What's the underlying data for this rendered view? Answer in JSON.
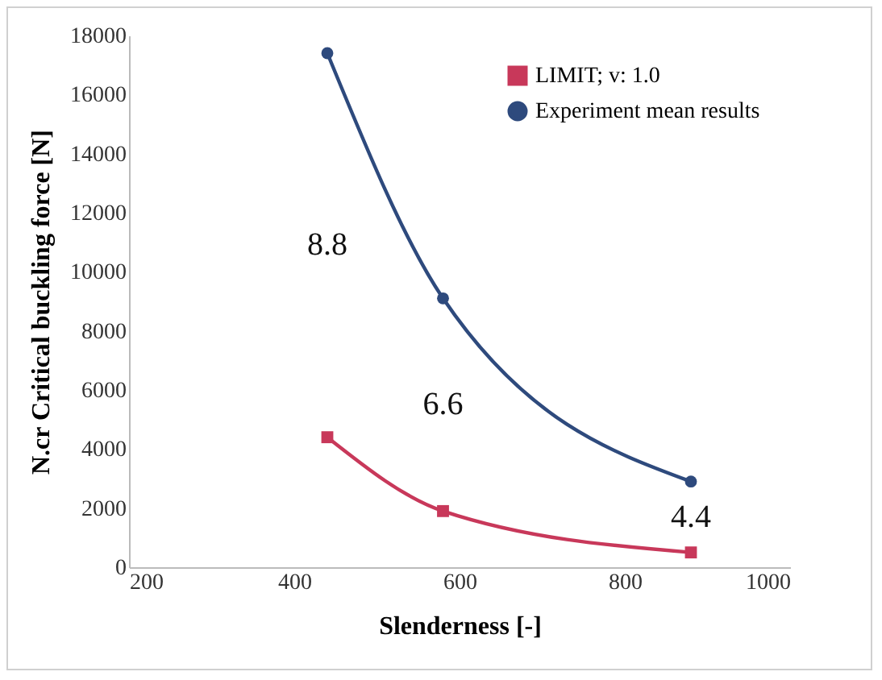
{
  "chart_data": {
    "type": "line",
    "xlabel": "Slenderness [-]",
    "ylabel": "N.cr Critical buckling force [N]",
    "series": [
      {
        "name": "LIMIT; v: 1.0",
        "color": "#c8385a",
        "marker": "square",
        "x": [
          440,
          580,
          880
        ],
        "values": [
          4400,
          1900,
          500
        ]
      },
      {
        "name": "Experiment mean results",
        "color": "#2e4a7d",
        "marker": "circle",
        "x": [
          440,
          580,
          880
        ],
        "values": [
          17400,
          9100,
          2900
        ]
      }
    ],
    "xlim": [
      200,
      1000
    ],
    "xticks": [
      200,
      400,
      600,
      800,
      1000
    ],
    "ylim": [
      0,
      18000
    ],
    "yticks": [
      0,
      2000,
      4000,
      6000,
      8000,
      10000,
      12000,
      14000,
      16000,
      18000
    ],
    "annotations": [
      "8.8",
      "6.6",
      "4.4"
    ],
    "grid": false,
    "legend": "top right",
    "line_style": "solid"
  }
}
